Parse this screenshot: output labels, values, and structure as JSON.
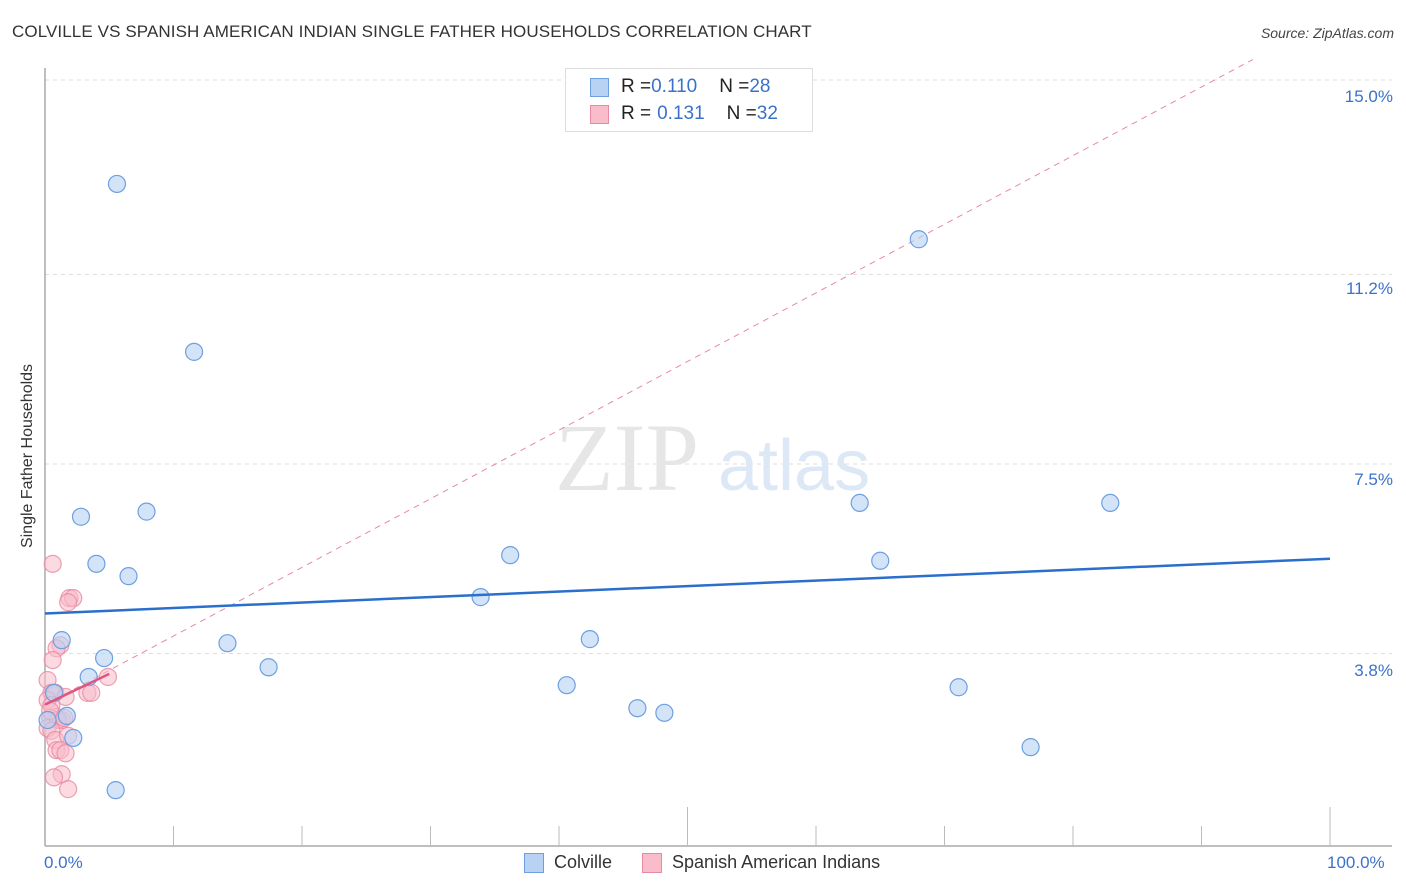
{
  "header": {
    "title": "COLVILLE VS SPANISH AMERICAN INDIAN SINGLE FATHER HOUSEHOLDS CORRELATION CHART",
    "source": "Source: ZipAtlas.com"
  },
  "legend_top": {
    "rows": [
      {
        "r_label": "R = ",
        "r_value": "0.110",
        "n_label": "N = ",
        "n_value": "28"
      },
      {
        "r_label": "R = ",
        "r_value": "0.131",
        "n_label": "N = ",
        "n_value": "32"
      }
    ]
  },
  "legend_bottom": {
    "items": [
      {
        "label": "Colville"
      },
      {
        "label": "Spanish American Indians"
      }
    ]
  },
  "axes": {
    "ylabel": "Single Father Households",
    "yticks": [
      "15.0%",
      "11.2%",
      "7.5%",
      "3.8%"
    ],
    "xticks": [
      "0.0%",
      "100.0%"
    ]
  },
  "watermark": {
    "zip": "ZIP",
    "atlas": "atlas"
  },
  "colors": {
    "colville_fill": "#b8d2f4",
    "colville_stroke": "#6e9fe0",
    "colville_line": "#2a6fcc",
    "spanish_fill": "#f8bccb",
    "spanish_stroke": "#e88aa2",
    "spanish_line": "#e05580",
    "tick_text": "#3b72c9"
  },
  "chart_data": {
    "type": "scatter",
    "title": "COLVILLE VS SPANISH AMERICAN INDIAN SINGLE FATHER HOUSEHOLDS CORRELATION CHART",
    "xlabel": "",
    "ylabel": "Single Father Households",
    "xlim": [
      0,
      100
    ],
    "ylim": [
      0,
      15.6
    ],
    "yticks": [
      3.8,
      7.5,
      11.2,
      15.0
    ],
    "xticks": [
      0,
      100
    ],
    "grid": true,
    "legend_position": "top-center and bottom",
    "series": [
      {
        "name": "Colville",
        "R": 0.11,
        "N": 28,
        "trend": {
          "x": [
            0,
            100
          ],
          "y": [
            4.58,
            5.65
          ]
        },
        "points": [
          [
            5.6,
            12.97
          ],
          [
            11.6,
            9.69
          ],
          [
            2.8,
            6.47
          ],
          [
            7.9,
            6.57
          ],
          [
            4.0,
            5.55
          ],
          [
            6.5,
            5.31
          ],
          [
            1.3,
            4.06
          ],
          [
            14.2,
            4.0
          ],
          [
            4.6,
            3.71
          ],
          [
            17.4,
            3.53
          ],
          [
            3.4,
            3.34
          ],
          [
            0.7,
            3.03
          ],
          [
            1.7,
            2.58
          ],
          [
            2.2,
            2.15
          ],
          [
            5.5,
            1.13
          ],
          [
            36.2,
            5.72
          ],
          [
            33.9,
            4.9
          ],
          [
            42.4,
            4.08
          ],
          [
            40.6,
            3.18
          ],
          [
            46.1,
            2.73
          ],
          [
            48.2,
            2.64
          ],
          [
            63.4,
            6.74
          ],
          [
            65.0,
            5.61
          ],
          [
            68.0,
            11.89
          ],
          [
            71.1,
            3.14
          ],
          [
            76.7,
            1.97
          ],
          [
            82.9,
            6.74
          ],
          [
            0.2,
            2.5
          ]
        ]
      },
      {
        "name": "Spanish American Indians",
        "R": 0.131,
        "N": 32,
        "trend_solid": {
          "x": [
            0,
            5
          ],
          "y": [
            2.8,
            3.4
          ]
        },
        "trend_dashed": {
          "x": [
            0,
            94
          ],
          "y": [
            2.8,
            15.4
          ]
        },
        "points": [
          [
            0.6,
            5.55
          ],
          [
            1.9,
            4.88
          ],
          [
            2.2,
            4.88
          ],
          [
            1.8,
            4.8
          ],
          [
            1.2,
            3.96
          ],
          [
            0.9,
            3.9
          ],
          [
            0.6,
            3.67
          ],
          [
            0.2,
            3.28
          ],
          [
            0.5,
            3.03
          ],
          [
            0.8,
            3.03
          ],
          [
            1.6,
            2.95
          ],
          [
            3.3,
            3.03
          ],
          [
            3.6,
            3.03
          ],
          [
            4.9,
            3.34
          ],
          [
            0.2,
            2.89
          ],
          [
            0.5,
            2.79
          ],
          [
            0.9,
            2.56
          ],
          [
            1.3,
            2.5
          ],
          [
            0.4,
            2.54
          ],
          [
            1.0,
            2.5
          ],
          [
            0.2,
            2.34
          ],
          [
            0.5,
            2.29
          ],
          [
            0.8,
            2.11
          ],
          [
            1.8,
            2.19
          ],
          [
            0.9,
            1.91
          ],
          [
            1.2,
            1.91
          ],
          [
            1.6,
            1.85
          ],
          [
            1.3,
            1.44
          ],
          [
            0.7,
            1.38
          ],
          [
            1.8,
            1.15
          ],
          [
            0.4,
            2.68
          ],
          [
            1.5,
            2.54
          ]
        ]
      }
    ]
  }
}
